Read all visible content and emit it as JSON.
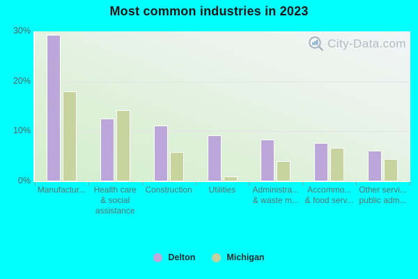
{
  "title": "Most common industries in 2023",
  "watermark": {
    "text": "City-Data.com",
    "icon": "magnifier-chart-icon"
  },
  "colors": {
    "background": "#00ffff",
    "delton_bar": "#bca7db",
    "michigan_bar": "#c7d49e",
    "bar_border": "#ffffff",
    "gridline": "#e7e1e9",
    "axis_text": "#5d6f6f",
    "title_text": "#151515",
    "watermark_text": "#b3bcc2"
  },
  "chart_data": {
    "type": "bar",
    "title": "Most common industries in 2023",
    "categories": [
      "Manufactur...",
      "Health care & social assistance",
      "Construction",
      "Utilities",
      "Administra... & waste m...",
      "Accommo... & food serv...",
      "Other servi... public adm..."
    ],
    "category_label_lines": [
      [
        "Manufactur..."
      ],
      [
        "Health care",
        "& social",
        "assistance"
      ],
      [
        "Construction"
      ],
      [
        "Utilities"
      ],
      [
        "Administra...",
        "& waste m..."
      ],
      [
        "Accommo...",
        "& food serv..."
      ],
      [
        "Other servi...",
        "public adm..."
      ]
    ],
    "series": [
      {
        "name": "Delton",
        "color": "#bca7db",
        "values": [
          29.3,
          12.5,
          11.2,
          9.2,
          8.4,
          7.7,
          6.2
        ]
      },
      {
        "name": "Michigan",
        "color": "#c7d49e",
        "values": [
          18.0,
          14.3,
          5.9,
          1.0,
          4.0,
          6.7,
          4.4
        ]
      }
    ],
    "xlabel": "",
    "ylabel": "",
    "ylim": [
      0,
      30
    ],
    "y_ticks": [
      {
        "label": "0%",
        "value": 0
      },
      {
        "label": "10%",
        "value": 10
      },
      {
        "label": "20%",
        "value": 20
      },
      {
        "label": "30%",
        "value": 30
      }
    ],
    "gridlines": [
      10,
      20
    ],
    "grid": true,
    "legend_position": "bottom"
  },
  "legend": {
    "items": [
      {
        "label": "Delton",
        "color": "#bfa8dc"
      },
      {
        "label": "Michigan",
        "color": "#c3cf9c"
      }
    ]
  }
}
